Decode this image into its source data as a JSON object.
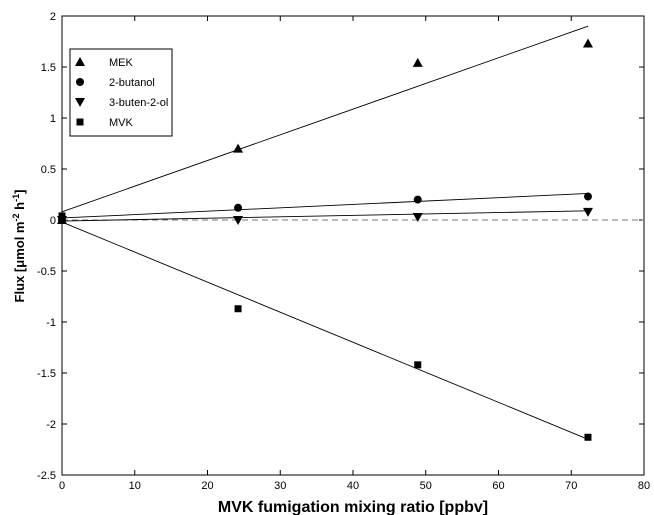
{
  "chart_data": {
    "type": "scatter",
    "xlabel": "MVK fumigation mixing ratio [ppbv]",
    "ylabel": {
      "pre": "Flux [",
      "mu": "μ",
      "mid": "mol m",
      "sup1": "-2",
      "mid2": " h",
      "sup2": "-1",
      "post": "]"
    },
    "xlim": [
      0,
      80
    ],
    "ylim": [
      -2.5,
      2
    ],
    "xticks": [
      0,
      10,
      20,
      30,
      40,
      50,
      60,
      70,
      80
    ],
    "yticks": [
      -2.5,
      -2,
      -1.5,
      -1,
      -0.5,
      0,
      0.5,
      1,
      1.5,
      2
    ],
    "xtick_labels": [
      "0",
      "10",
      "20",
      "30",
      "40",
      "50",
      "60",
      "70",
      "80"
    ],
    "ytick_labels": [
      "-2.5",
      "-2",
      "-1.5",
      "-1",
      "-0.5",
      "0",
      "0.5",
      "1",
      "1.5",
      "2"
    ],
    "grid": false,
    "legend_position": "top-left",
    "zero_line": {
      "y": 0,
      "style": "dashed"
    },
    "series": [
      {
        "name": "MEK",
        "marker": "triangle-up",
        "x": [
          0,
          24.2,
          48.9,
          72.3
        ],
        "y": [
          0.0,
          0.7,
          1.54,
          1.73
        ],
        "fit": {
          "x0": 0,
          "y0": 0.08,
          "x1": 72.3,
          "y1": 1.9
        }
      },
      {
        "name": "2-butanol",
        "marker": "circle",
        "x": [
          0,
          24.2,
          48.9,
          72.3
        ],
        "y": [
          0.0,
          0.12,
          0.2,
          0.23
        ],
        "fit": {
          "x0": 0,
          "y0": 0.02,
          "x1": 72.3,
          "y1": 0.26
        }
      },
      {
        "name": "3-buten-2-ol",
        "marker": "triangle-down",
        "x": [
          0,
          24.2,
          48.9,
          72.3
        ],
        "y": [
          0.0,
          0.0,
          0.03,
          0.08
        ],
        "fit": {
          "x0": 0,
          "y0": -0.01,
          "x1": 72.3,
          "y1": 0.09
        }
      },
      {
        "name": "MVK",
        "marker": "square",
        "x": [
          0,
          24.2,
          48.9,
          72.3
        ],
        "y": [
          0.04,
          -0.87,
          -1.42,
          -2.13
        ],
        "fit": {
          "x0": 0,
          "y0": -0.02,
          "x1": 72.3,
          "y1": -2.15
        }
      }
    ]
  }
}
